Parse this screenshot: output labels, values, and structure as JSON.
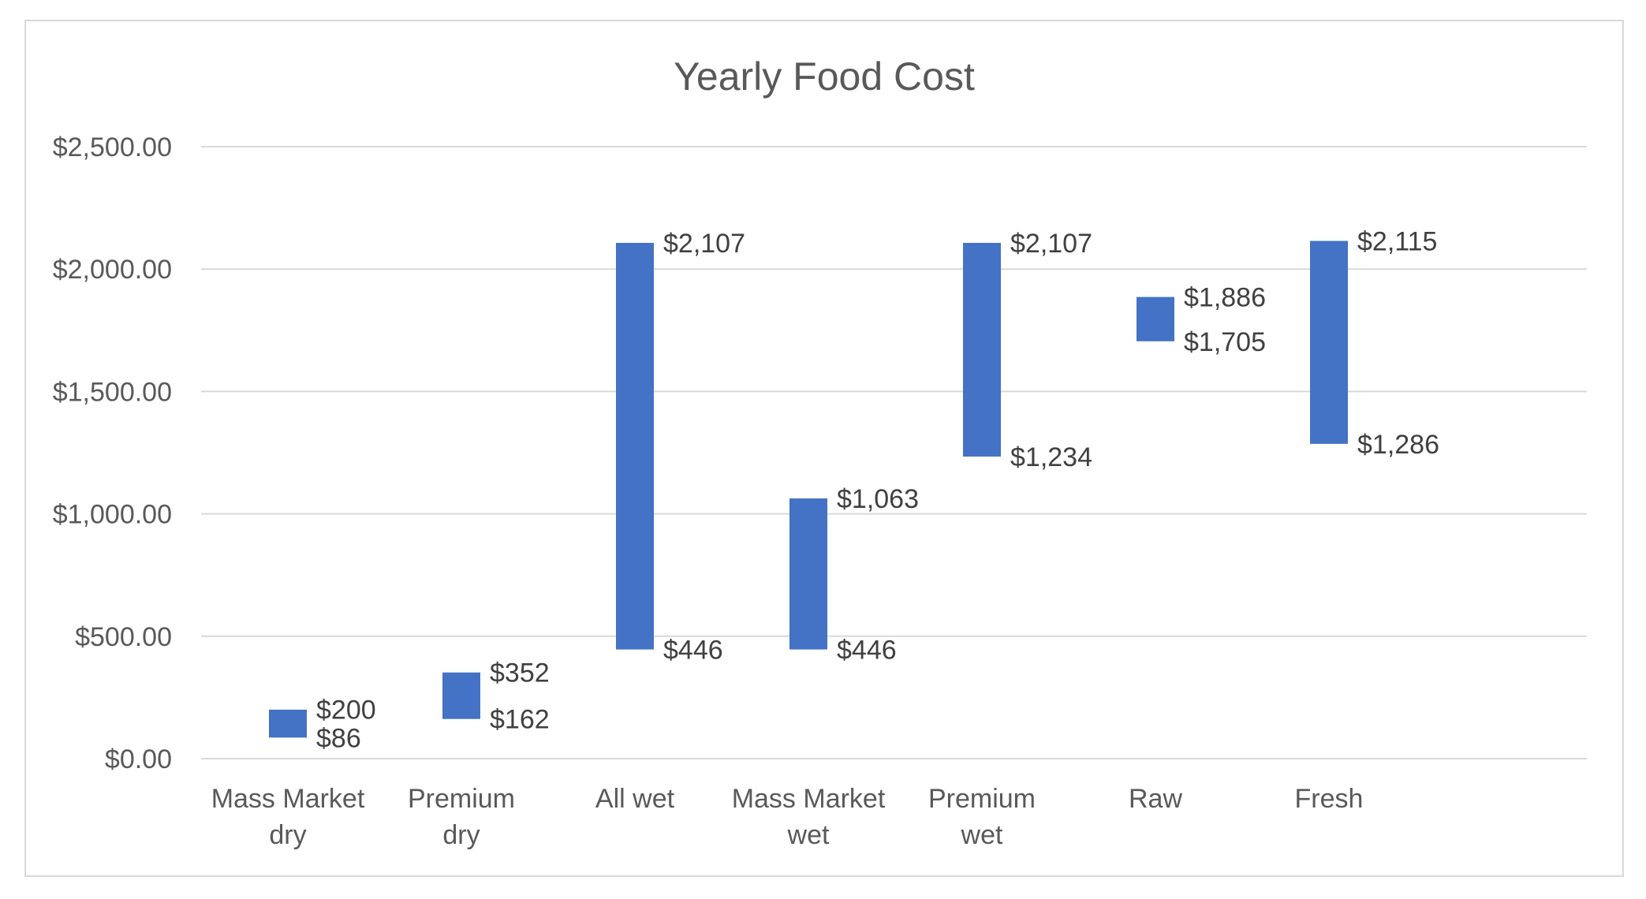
{
  "chart_data": {
    "type": "bar",
    "subtype": "floating-range",
    "title": "Yearly Food Cost",
    "xlabel": "",
    "ylabel": "",
    "ylim": [
      0,
      2500
    ],
    "yticks": [
      0,
      500,
      1000,
      1500,
      2000,
      2500
    ],
    "ytick_labels": [
      "$0.00",
      "$500.00",
      "$1,000.00",
      "$1,500.00",
      "$2,000.00",
      "$2,500.00"
    ],
    "grid": true,
    "legend": "none",
    "bar_color": "#4472C4",
    "categories": [
      [
        "Mass Market",
        "dry"
      ],
      [
        "Premium",
        "dry"
      ],
      [
        "All wet"
      ],
      [
        "Mass Market",
        "wet"
      ],
      [
        "Premium",
        "wet"
      ],
      [
        "Raw"
      ],
      [
        "Fresh"
      ]
    ],
    "series": [
      {
        "name": "Low",
        "values": [
          86,
          162,
          446,
          446,
          1234,
          1705,
          1286
        ],
        "labels": [
          "$86",
          "$162",
          "$446",
          "$446",
          "$1,234",
          "$1,705",
          "$1,286"
        ]
      },
      {
        "name": "High",
        "values": [
          200,
          352,
          2107,
          1063,
          2107,
          1886,
          2115
        ],
        "labels": [
          "$200",
          "$352",
          "$2,107",
          "$1,063",
          "$2,107",
          "$1,886",
          "$2,115"
        ]
      }
    ]
  }
}
